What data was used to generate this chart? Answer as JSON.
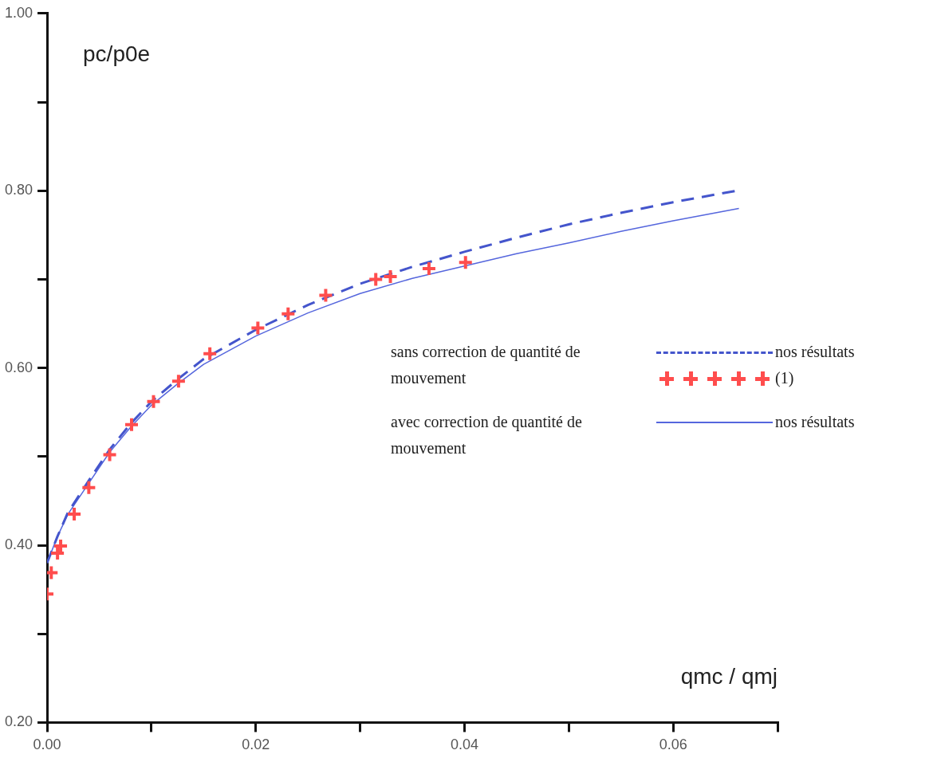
{
  "chart_data": {
    "type": "line",
    "xlabel": "qmc / qmj",
    "ylabel": "pc/p0e",
    "xlim": [
      0,
      0.07
    ],
    "xticks": [
      {
        "value": 0,
        "label": "0.00"
      },
      {
        "value": 0.01,
        "label": null
      },
      {
        "value": 0.02,
        "label": "0.02"
      },
      {
        "value": 0.03,
        "label": null
      },
      {
        "value": 0.04,
        "label": "0.04"
      },
      {
        "value": 0.05,
        "label": null
      },
      {
        "value": 0.06,
        "label": "0.06"
      },
      {
        "value": 0.07,
        "label": null
      }
    ],
    "ylim": [
      0.2,
      1.0
    ],
    "yticks": [
      {
        "value": 0.2,
        "label": "0.20"
      },
      {
        "value": 0.3,
        "label": null
      },
      {
        "value": 0.4,
        "label": "0.40"
      },
      {
        "value": 0.5,
        "label": null
      },
      {
        "value": 0.6,
        "label": "0.60"
      },
      {
        "value": 0.7,
        "label": null
      },
      {
        "value": 0.8,
        "label": "0.80"
      },
      {
        "value": 0.9,
        "label": null
      },
      {
        "value": 1.0,
        "label": "1.00"
      }
    ],
    "grid": false,
    "legend": "right",
    "annotations": [
      "sans correction de quantité de mouvement",
      "avec correction de quantité de mouvement"
    ],
    "series": [
      {
        "name": "nos résultats",
        "type": "line",
        "color": "#4455cc",
        "line_style": "dashed",
        "marker": "none",
        "x": [
          0,
          0.001,
          0.002,
          0.004,
          0.006,
          0.008,
          0.01,
          0.0125,
          0.015,
          0.02,
          0.025,
          0.03,
          0.035,
          0.04,
          0.045,
          0.05,
          0.055,
          0.06,
          0.0661
        ],
        "values": [
          0.38,
          0.41,
          0.437,
          0.473,
          0.508,
          0.537,
          0.562,
          0.587,
          0.61,
          0.643,
          0.671,
          0.695,
          0.714,
          0.731,
          0.747,
          0.762,
          0.775,
          0.787,
          0.8
        ]
      },
      {
        "name": "(1)",
        "type": "scatter",
        "color": "#ff4d4d",
        "marker": "cross",
        "x": [
          0,
          0.0004,
          0.001,
          0.0013,
          0.0026,
          0.004,
          0.006,
          0.0081,
          0.0102,
          0.0126,
          0.0156,
          0.0202,
          0.0231,
          0.0267,
          0.0315,
          0.0329,
          0.0366,
          0.0401
        ],
        "values": [
          0.345,
          0.369,
          0.391,
          0.399,
          0.435,
          0.465,
          0.502,
          0.536,
          0.562,
          0.585,
          0.616,
          0.645,
          0.661,
          0.682,
          0.7,
          0.703,
          0.712,
          0.719
        ]
      },
      {
        "name": "nos résultats",
        "type": "line",
        "color": "#5566dd",
        "line_style": "solid",
        "marker": "none",
        "x": [
          0,
          0.001,
          0.002,
          0.004,
          0.006,
          0.008,
          0.01,
          0.0125,
          0.015,
          0.02,
          0.025,
          0.03,
          0.035,
          0.04,
          0.045,
          0.05,
          0.055,
          0.06,
          0.0663
        ],
        "values": [
          0.38,
          0.41,
          0.435,
          0.47,
          0.505,
          0.533,
          0.558,
          0.582,
          0.604,
          0.636,
          0.662,
          0.684,
          0.701,
          0.715,
          0.729,
          0.741,
          0.754,
          0.766,
          0.78
        ]
      }
    ]
  }
}
